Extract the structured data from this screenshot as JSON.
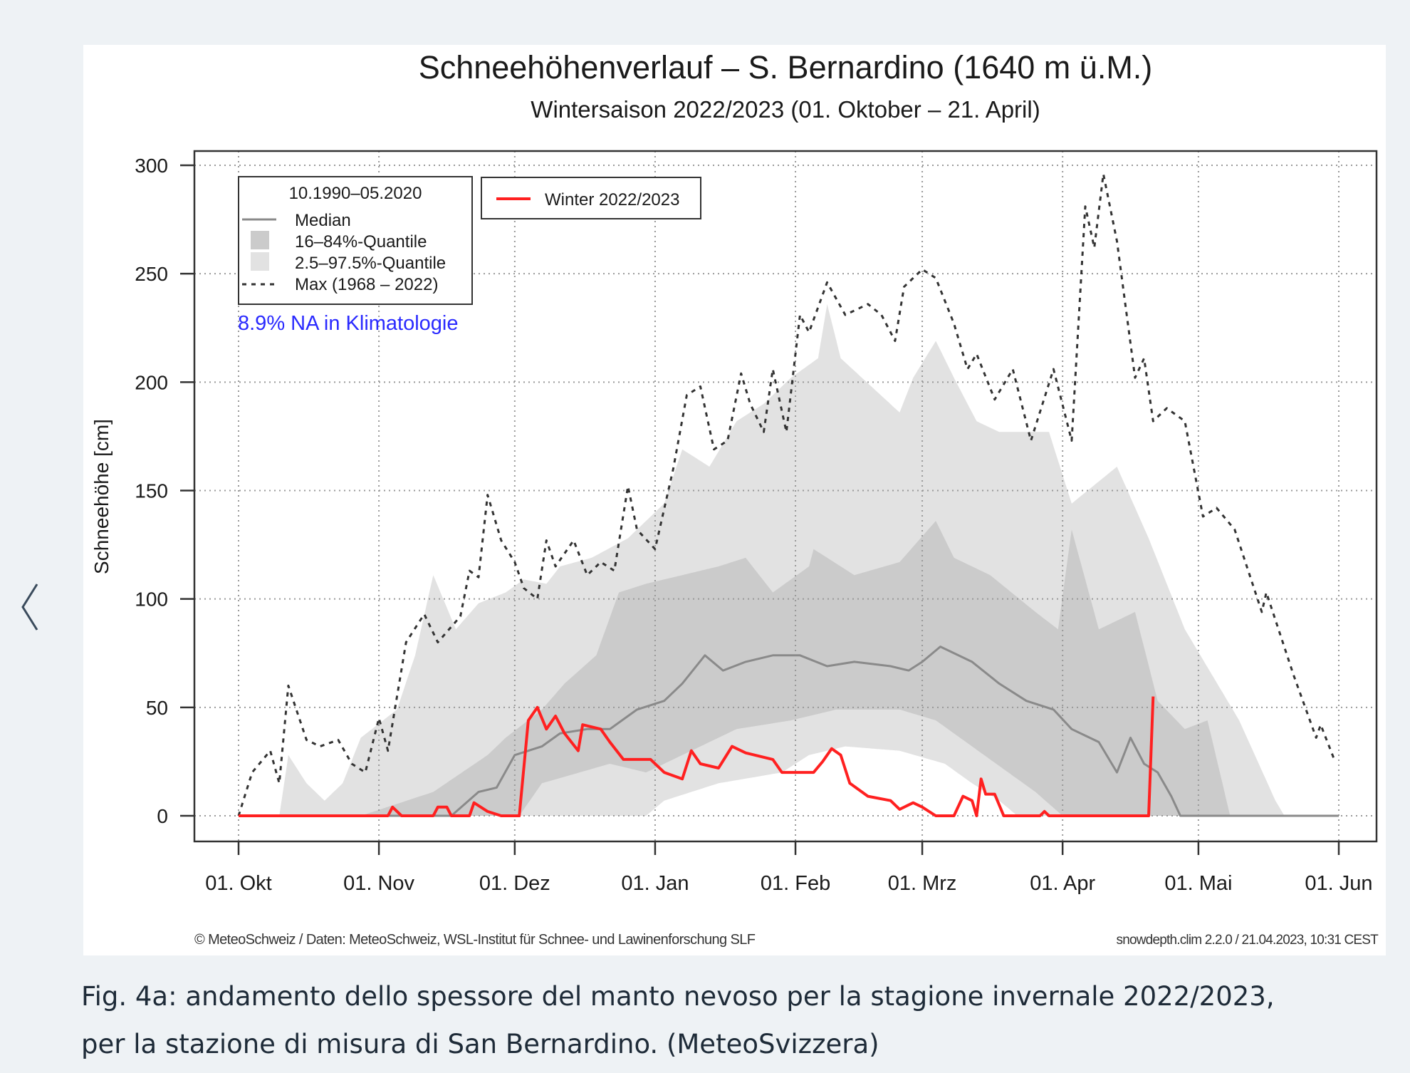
{
  "nav": {
    "prev_icon": "chevron-left-icon"
  },
  "caption": {
    "line1": "Fig. 4a: andamento dello spessore del manto nevoso per la stagione invernale 2022/2023,",
    "line2": "per la stazione di misura di San Bernardino. (MeteoSvizzera)"
  },
  "chart_data": {
    "type": "area",
    "title": "Schneehöhenverlauf – S. Bernardino (1640 m ü.M.)",
    "subtitle": "Wintersaison 2022/2023 (01. Oktober – 21. April)",
    "ylabel": "Schneehöhe [cm]",
    "xlabel": "",
    "ylim": [
      0,
      300
    ],
    "yticks": [
      0,
      50,
      100,
      150,
      200,
      250,
      300
    ],
    "x_unit": "days since 01. Okt",
    "xlim": [
      0,
      243
    ],
    "xticks": [
      {
        "day": 0,
        "label": "01. Okt"
      },
      {
        "day": 31,
        "label": "01. Nov"
      },
      {
        "day": 61,
        "label": "01. Dez"
      },
      {
        "day": 92,
        "label": "01. Jan"
      },
      {
        "day": 123,
        "label": "01. Feb"
      },
      {
        "day": 151,
        "label": "01. Mrz"
      },
      {
        "day": 182,
        "label": "01. Apr"
      },
      {
        "day": 212,
        "label": "01. Mai"
      },
      {
        "day": 243,
        "label": "01. Jun"
      }
    ],
    "grid": true,
    "legend": {
      "placement": "top-left",
      "title": "10.1990–05.2020",
      "entries": [
        "Median",
        "16–84%-Quantile",
        "2.5–97.5%-Quantile",
        "Max (1968 – 2022)"
      ],
      "current_label": "Winter 2022/2023"
    },
    "annotation": "8.9% NA in Klimatologie",
    "footer_left": "© MeteoSchweiz / Daten: MeteoSchweiz, WSL-Institut für Schnee- und Lawinenforschung SLF",
    "footer_right": "snowdepth.clim 2.2.0 / 21.04.2023, 10:31 CEST",
    "colors": {
      "q975": "#e2e2e2",
      "q84": "#cbcbcb",
      "median": "#8a8a8a",
      "max": "#333333",
      "current": "#ff2020",
      "annotation": "#2a2aff"
    },
    "series": {
      "max": [
        [
          0,
          0
        ],
        [
          3,
          20
        ],
        [
          7,
          30
        ],
        [
          9,
          15
        ],
        [
          11,
          60
        ],
        [
          15,
          35
        ],
        [
          18,
          32
        ],
        [
          22,
          35
        ],
        [
          25,
          24
        ],
        [
          28,
          20
        ],
        [
          31,
          45
        ],
        [
          33,
          30
        ],
        [
          37,
          80
        ],
        [
          41,
          93
        ],
        [
          44,
          80
        ],
        [
          49,
          92
        ],
        [
          51,
          113
        ],
        [
          53,
          110
        ],
        [
          55,
          148
        ],
        [
          58,
          127
        ],
        [
          61,
          117
        ],
        [
          63,
          105
        ],
        [
          66,
          100
        ],
        [
          68,
          127
        ],
        [
          70,
          115
        ],
        [
          74,
          127
        ],
        [
          77,
          111
        ],
        [
          80,
          117
        ],
        [
          83,
          113
        ],
        [
          86,
          152
        ],
        [
          88,
          132
        ],
        [
          92,
          123
        ],
        [
          96,
          160
        ],
        [
          99,
          194
        ],
        [
          102,
          198
        ],
        [
          105,
          169
        ],
        [
          108,
          173
        ],
        [
          111,
          204
        ],
        [
          113,
          190
        ],
        [
          116,
          177
        ],
        [
          118,
          206
        ],
        [
          121,
          177
        ],
        [
          124,
          231
        ],
        [
          126,
          223
        ],
        [
          130,
          246
        ],
        [
          134,
          231
        ],
        [
          139,
          236
        ],
        [
          142,
          231
        ],
        [
          145,
          219
        ],
        [
          147,
          244
        ],
        [
          151,
          252
        ],
        [
          154,
          248
        ],
        [
          158,
          227
        ],
        [
          161,
          206
        ],
        [
          163,
          213
        ],
        [
          167,
          192
        ],
        [
          171,
          206
        ],
        [
          175,
          173
        ],
        [
          180,
          206
        ],
        [
          184,
          173
        ],
        [
          187,
          281
        ],
        [
          189,
          262
        ],
        [
          191,
          296
        ],
        [
          194,
          265
        ],
        [
          198,
          202
        ],
        [
          200,
          211
        ],
        [
          202,
          182
        ],
        [
          205,
          188
        ],
        [
          209,
          182
        ],
        [
          213,
          138
        ],
        [
          216,
          142
        ],
        [
          220,
          132
        ],
        [
          226,
          94
        ],
        [
          227,
          103
        ],
        [
          233,
          65
        ],
        [
          238,
          36
        ],
        [
          239,
          42
        ],
        [
          242,
          26
        ]
      ],
      "q975_upper": [
        [
          0,
          0
        ],
        [
          9,
          0
        ],
        [
          11,
          28
        ],
        [
          15,
          15
        ],
        [
          19,
          7
        ],
        [
          23,
          15
        ],
        [
          27,
          36
        ],
        [
          35,
          49
        ],
        [
          39,
          74
        ],
        [
          43,
          111
        ],
        [
          48,
          86
        ],
        [
          53,
          98
        ],
        [
          59,
          103
        ],
        [
          63,
          109
        ],
        [
          68,
          107
        ],
        [
          71,
          115
        ],
        [
          78,
          119
        ],
        [
          86,
          128
        ],
        [
          94,
          144
        ],
        [
          98,
          169
        ],
        [
          104,
          161
        ],
        [
          110,
          182
        ],
        [
          116,
          190
        ],
        [
          122,
          202
        ],
        [
          128,
          211
        ],
        [
          130,
          236
        ],
        [
          133,
          211
        ],
        [
          146,
          186
        ],
        [
          149,
          202
        ],
        [
          154,
          219
        ],
        [
          158,
          202
        ],
        [
          163,
          182
        ],
        [
          168,
          177
        ],
        [
          179,
          177
        ],
        [
          184,
          144
        ],
        [
          194,
          161
        ],
        [
          201,
          128
        ],
        [
          209,
          86
        ],
        [
          221,
          44
        ],
        [
          229,
          7
        ],
        [
          231,
          0
        ],
        [
          243,
          0
        ]
      ],
      "q84_upper": [
        [
          0,
          0
        ],
        [
          27,
          0
        ],
        [
          43,
          11
        ],
        [
          55,
          28
        ],
        [
          59,
          36
        ],
        [
          67,
          49
        ],
        [
          72,
          61
        ],
        [
          79,
          74
        ],
        [
          84,
          103
        ],
        [
          90,
          107
        ],
        [
          98,
          111
        ],
        [
          106,
          115
        ],
        [
          112,
          119
        ],
        [
          118,
          103
        ],
        [
          126,
          115
        ],
        [
          127,
          123
        ],
        [
          136,
          111
        ],
        [
          146,
          117
        ],
        [
          154,
          136
        ],
        [
          158,
          119
        ],
        [
          166,
          111
        ],
        [
          176,
          94
        ],
        [
          181,
          86
        ],
        [
          184,
          132
        ],
        [
          190,
          86
        ],
        [
          198,
          94
        ],
        [
          203,
          53
        ],
        [
          209,
          40
        ],
        [
          214,
          44
        ],
        [
          219,
          0
        ],
        [
          243,
          0
        ]
      ],
      "q16_lower": [
        [
          0,
          0
        ],
        [
          62,
          0
        ],
        [
          67,
          15
        ],
        [
          82,
          24
        ],
        [
          90,
          20
        ],
        [
          98,
          28
        ],
        [
          110,
          40
        ],
        [
          122,
          44
        ],
        [
          132,
          49
        ],
        [
          146,
          49
        ],
        [
          154,
          44
        ],
        [
          162,
          32
        ],
        [
          170,
          20
        ],
        [
          176,
          11
        ],
        [
          182,
          0
        ],
        [
          243,
          0
        ]
      ],
      "q025_lower": [
        [
          0,
          0
        ],
        [
          90,
          0
        ],
        [
          94,
          7
        ],
        [
          106,
          15
        ],
        [
          120,
          20
        ],
        [
          126,
          28
        ],
        [
          134,
          32
        ],
        [
          146,
          30
        ],
        [
          156,
          24
        ],
        [
          162,
          15
        ],
        [
          168,
          7
        ],
        [
          172,
          0
        ],
        [
          243,
          0
        ]
      ],
      "median": [
        [
          0,
          0
        ],
        [
          47,
          0
        ],
        [
          53,
          11
        ],
        [
          57,
          13
        ],
        [
          61,
          28
        ],
        [
          67,
          32
        ],
        [
          71,
          38
        ],
        [
          77,
          40
        ],
        [
          82,
          40
        ],
        [
          88,
          49
        ],
        [
          94,
          53
        ],
        [
          98,
          61
        ],
        [
          103,
          74
        ],
        [
          107,
          67
        ],
        [
          112,
          71
        ],
        [
          118,
          74
        ],
        [
          124,
          74
        ],
        [
          130,
          69
        ],
        [
          136,
          71
        ],
        [
          144,
          69
        ],
        [
          148,
          67
        ],
        [
          151,
          71
        ],
        [
          155,
          78
        ],
        [
          162,
          71
        ],
        [
          168,
          61
        ],
        [
          174,
          53
        ],
        [
          180,
          49
        ],
        [
          184,
          40
        ],
        [
          190,
          34
        ],
        [
          194,
          20
        ],
        [
          197,
          36
        ],
        [
          200,
          24
        ],
        [
          203,
          20
        ],
        [
          206,
          9
        ],
        [
          208,
          0
        ],
        [
          243,
          0
        ]
      ],
      "current": [
        [
          0,
          0
        ],
        [
          33,
          0
        ],
        [
          34,
          4
        ],
        [
          36,
          0
        ],
        [
          43,
          0
        ],
        [
          44,
          4
        ],
        [
          46,
          4
        ],
        [
          47,
          0
        ],
        [
          51,
          0
        ],
        [
          52,
          6
        ],
        [
          55,
          2
        ],
        [
          58,
          0
        ],
        [
          62,
          0
        ],
        [
          64,
          44
        ],
        [
          66,
          50
        ],
        [
          68,
          40
        ],
        [
          70,
          46
        ],
        [
          72,
          38
        ],
        [
          75,
          30
        ],
        [
          76,
          42
        ],
        [
          80,
          40
        ],
        [
          82,
          34
        ],
        [
          85,
          26
        ],
        [
          91,
          26
        ],
        [
          94,
          20
        ],
        [
          98,
          17
        ],
        [
          100,
          30
        ],
        [
          102,
          24
        ],
        [
          106,
          22
        ],
        [
          109,
          32
        ],
        [
          112,
          29
        ],
        [
          118,
          26
        ],
        [
          120,
          20
        ],
        [
          127,
          20
        ],
        [
          129,
          25
        ],
        [
          131,
          31
        ],
        [
          133,
          28
        ],
        [
          135,
          15
        ],
        [
          139,
          9
        ],
        [
          144,
          7
        ],
        [
          146,
          3
        ],
        [
          149,
          6
        ],
        [
          151,
          4
        ],
        [
          154,
          0
        ],
        [
          158,
          0
        ],
        [
          160,
          9
        ],
        [
          162,
          7
        ],
        [
          163,
          0
        ],
        [
          164,
          17
        ],
        [
          165,
          10
        ],
        [
          167,
          10
        ],
        [
          169,
          0
        ],
        [
          177,
          0
        ],
        [
          178,
          2
        ],
        [
          179,
          0
        ],
        [
          201,
          0
        ],
        [
          202,
          55
        ]
      ]
    }
  }
}
